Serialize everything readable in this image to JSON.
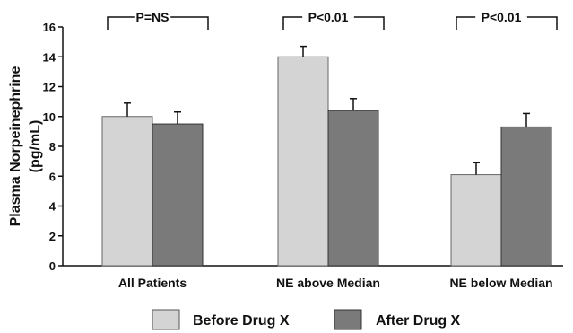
{
  "chart_data": {
    "type": "bar",
    "ylabel_line1": "Plasma Norpeinephrine",
    "ylabel_line2": "(pg/mL)",
    "ylim": [
      0,
      16
    ],
    "yticks": [
      0,
      2,
      4,
      6,
      8,
      10,
      12,
      14,
      16
    ],
    "categories": [
      "All Patients",
      "NE above Median",
      "NE below Median"
    ],
    "series": [
      {
        "name": "Before Drug X",
        "color": "#d4d4d4",
        "values": [
          10.0,
          14.0,
          6.1
        ],
        "errors": [
          0.9,
          0.7,
          0.8
        ]
      },
      {
        "name": "After Drug X",
        "color": "#7a7a7a",
        "values": [
          9.5,
          10.4,
          9.3
        ],
        "errors": [
          0.8,
          0.8,
          0.9
        ]
      }
    ],
    "significance": [
      "P=NS",
      "P<0.01",
      "P<0.01"
    ],
    "grid": false,
    "legend_position": "bottom"
  }
}
